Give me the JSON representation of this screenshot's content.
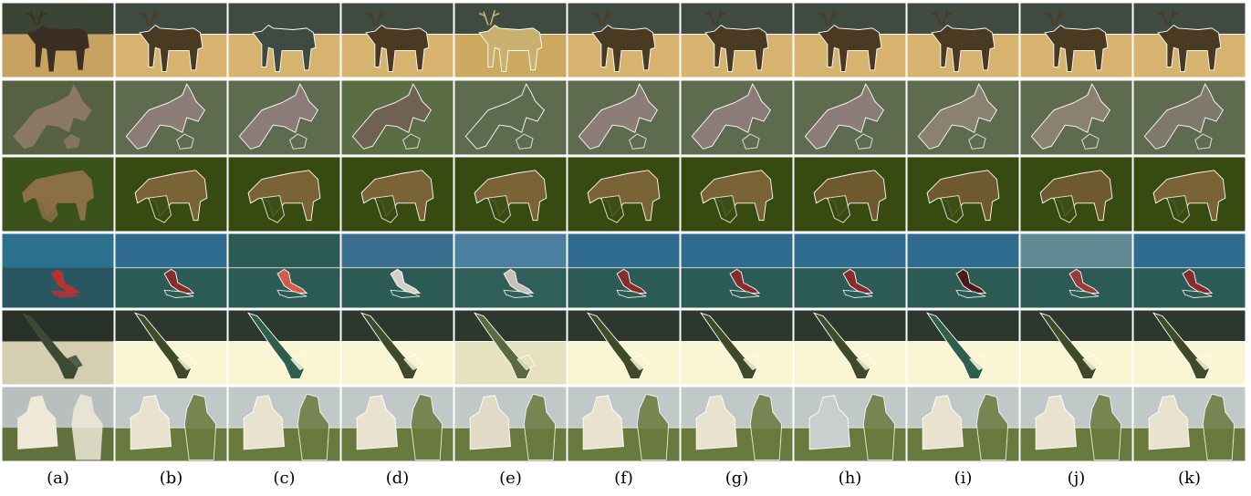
{
  "figure": {
    "column_labels": [
      "(a)",
      "(b)",
      "(c)",
      "(d)",
      "(e)",
      "(f)",
      "(g)",
      "(h)",
      "(i)",
      "(j)",
      "(k)"
    ],
    "rows": [
      {
        "subject": "elk",
        "tiles": [
          {
            "variant": "photo",
            "top": "#3f4a3a",
            "bottom": "#d9b06a",
            "fg": "#3a2f22",
            "stroke": "#ffffff"
          },
          {
            "variant": "seg",
            "top": "#3f4a40",
            "bottom": "#d6b46f",
            "fg": "#4a3a22",
            "stroke": "#ffffff"
          },
          {
            "variant": "seg",
            "top": "#3f4a40",
            "bottom": "#d6b46f",
            "fg": "#3f4a40",
            "stroke": "#ffffff"
          },
          {
            "variant": "seg",
            "top": "#3f4a40",
            "bottom": "#d6b46f",
            "fg": "#4a3a22",
            "stroke": "#ffffff"
          },
          {
            "variant": "seg",
            "top": "#3f4a40",
            "bottom": "#cda95f",
            "fg": "#c9b06f",
            "stroke": "#ffffff"
          },
          {
            "variant": "seg",
            "top": "#3f4a40",
            "bottom": "#d6b46f",
            "fg": "#4a3a22",
            "stroke": "#ffffff"
          },
          {
            "variant": "seg",
            "top": "#3f4a40",
            "bottom": "#d6b46f",
            "fg": "#4a3a22",
            "stroke": "#ffffff"
          },
          {
            "variant": "seg",
            "top": "#3f4a40",
            "bottom": "#d6b46f",
            "fg": "#4a3a22",
            "stroke": "#ffffff"
          },
          {
            "variant": "seg",
            "top": "#3f4a40",
            "bottom": "#d6b46f",
            "fg": "#4a3a22",
            "stroke": "#ffffff"
          },
          {
            "variant": "seg",
            "top": "#3f4a40",
            "bottom": "#d6b46f",
            "fg": "#4a3a22",
            "stroke": "#ffffff"
          },
          {
            "variant": "seg",
            "top": "#3f4a40",
            "bottom": "#d6b46f",
            "fg": "#4a3a22",
            "stroke": "#ffffff"
          }
        ]
      },
      {
        "subject": "kangaroo",
        "tiles": [
          {
            "variant": "photo",
            "top": "#5d6a47",
            "bottom": "#6b7a4b",
            "fg": "#8b7865",
            "stroke": "#ffffff"
          },
          {
            "variant": "seg",
            "top": "#5f6b4f",
            "bottom": "#5f6b4f",
            "fg": "#8c7c78",
            "stroke": "#ffffff"
          },
          {
            "variant": "seg",
            "top": "#5f6b4f",
            "bottom": "#5f6b4f",
            "fg": "#8c7c78",
            "stroke": "#ffffff"
          },
          {
            "variant": "seg",
            "top": "#5a6d43",
            "bottom": "#596a45",
            "fg": "#6f6252",
            "stroke": "#ffffff"
          },
          {
            "variant": "seg",
            "top": "#5f6b4f",
            "bottom": "#5f6b4f",
            "fg": "#5f6b4f",
            "stroke": "#ffffff"
          },
          {
            "variant": "seg",
            "top": "#5f6b4f",
            "bottom": "#5f6b4f",
            "fg": "#8c7c78",
            "stroke": "#ffffff"
          },
          {
            "variant": "seg",
            "top": "#5f6b4f",
            "bottom": "#5f6b4f",
            "fg": "#8c7c78",
            "stroke": "#ffffff"
          },
          {
            "variant": "seg",
            "top": "#5f6b4f",
            "bottom": "#5f6b4f",
            "fg": "#8c7c78",
            "stroke": "#ffffff"
          },
          {
            "variant": "seg",
            "top": "#5f6b4f",
            "bottom": "#5f6b4f",
            "fg": "#8a8170",
            "stroke": "#ffffff"
          },
          {
            "variant": "seg",
            "top": "#5f6b4f",
            "bottom": "#5f6b4f",
            "fg": "#8a8170",
            "stroke": "#ffffff"
          },
          {
            "variant": "seg",
            "top": "#5f6b4f",
            "bottom": "#5f6b4f",
            "fg": "#7f786d",
            "stroke": "#ffffff"
          }
        ]
      },
      {
        "subject": "sheep",
        "tiles": [
          {
            "variant": "photo",
            "top": "#405a1f",
            "bottom": "#4b6a22",
            "fg": "#8b6f45",
            "stroke": "#ffffff"
          },
          {
            "variant": "seg",
            "top": "#374a10",
            "bottom": "#374a10",
            "fg": "#7a6334",
            "stroke": "#ffffff"
          },
          {
            "variant": "seg",
            "top": "#374a10",
            "bottom": "#374a10",
            "fg": "#7a6334",
            "stroke": "#ffffff"
          },
          {
            "variant": "seg",
            "top": "#374a10",
            "bottom": "#374a10",
            "fg": "#7a6334",
            "stroke": "#ffffff"
          },
          {
            "variant": "seg",
            "top": "#374a10",
            "bottom": "#374a10",
            "fg": "#7a6334",
            "stroke": "#ffffff"
          },
          {
            "variant": "seg",
            "top": "#374a10",
            "bottom": "#374a10",
            "fg": "#7a6334",
            "stroke": "#ffffff"
          },
          {
            "variant": "seg",
            "top": "#374a10",
            "bottom": "#374a10",
            "fg": "#7a6334",
            "stroke": "#ffffff"
          },
          {
            "variant": "seg",
            "top": "#374a10",
            "bottom": "#374a10",
            "fg": "#6e5a2e",
            "stroke": "#ffffff"
          },
          {
            "variant": "seg",
            "top": "#374a10",
            "bottom": "#374a10",
            "fg": "#6e5a2e",
            "stroke": "#ffffff"
          },
          {
            "variant": "seg",
            "top": "#374a10",
            "bottom": "#374a10",
            "fg": "#6e5a2e",
            "stroke": "#ffffff"
          },
          {
            "variant": "seg",
            "top": "#374a10",
            "bottom": "#374a10",
            "fg": "#7a6334",
            "stroke": "#ffffff"
          }
        ]
      },
      {
        "subject": "surfer",
        "tiles": [
          {
            "variant": "photo",
            "top": "#2f7a9a",
            "bottom": "#2c5f6a",
            "fg": "#b83232",
            "stroke": "#ffffff"
          },
          {
            "variant": "seg",
            "top": "#2f6c8f",
            "bottom": "#2c5a54",
            "fg": "#8a2a2a",
            "stroke": "#ffffff"
          },
          {
            "variant": "seg",
            "top": "#2c5a54",
            "bottom": "#2c5a54",
            "fg": "#d65a4a",
            "stroke": "#ffffff"
          },
          {
            "variant": "seg",
            "top": "#3a6f8f",
            "bottom": "#2c5a54",
            "fg": "#d4d0c8",
            "stroke": "#ffffff"
          },
          {
            "variant": "seg",
            "top": "#4a7fa0",
            "bottom": "#305e58",
            "fg": "#c8bfb8",
            "stroke": "#ffffff"
          },
          {
            "variant": "seg",
            "top": "#2f6c8f",
            "bottom": "#2c5a54",
            "fg": "#8a2a2a",
            "stroke": "#ffffff"
          },
          {
            "variant": "seg",
            "top": "#2f6c8f",
            "bottom": "#2c5a54",
            "fg": "#8a2a2a",
            "stroke": "#ffffff"
          },
          {
            "variant": "seg",
            "top": "#2f6c8f",
            "bottom": "#2c5a54",
            "fg": "#8a2a2a",
            "stroke": "#ffffff"
          },
          {
            "variant": "seg",
            "top": "#2f6c8f",
            "bottom": "#2c5a54",
            "fg": "#4a1a1a",
            "stroke": "#ffffff"
          },
          {
            "variant": "seg",
            "top": "#5f8a94",
            "bottom": "#2c5a54",
            "fg": "#9a3a3a",
            "stroke": "#ffffff"
          },
          {
            "variant": "seg",
            "top": "#2f6c8f",
            "bottom": "#2c5a54",
            "fg": "#8a2a2a",
            "stroke": "#ffffff"
          }
        ]
      },
      {
        "subject": "windsurfer",
        "tiles": [
          {
            "variant": "photo",
            "top": "#2b362b",
            "bottom": "#e8e0c0",
            "fg": "#3c4a32",
            "stroke": "#ffffff"
          },
          {
            "variant": "seg",
            "top": "#2c372e",
            "bottom": "#faf6d4",
            "fg": "#3e4a28",
            "stroke": "#ffffff"
          },
          {
            "variant": "seg",
            "top": "#2c372e",
            "bottom": "#faf6d4",
            "fg": "#2f5f4a",
            "stroke": "#ffffff"
          },
          {
            "variant": "seg",
            "top": "#2c372e",
            "bottom": "#faf6d4",
            "fg": "#3e4a28",
            "stroke": "#ffffff"
          },
          {
            "variant": "seg",
            "top": "#2c372e",
            "bottom": "#e6e2c0",
            "fg": "#5a6a3e",
            "stroke": "#ffffff"
          },
          {
            "variant": "seg",
            "top": "#2c372e",
            "bottom": "#faf6d4",
            "fg": "#3e4a28",
            "stroke": "#ffffff"
          },
          {
            "variant": "seg",
            "top": "#2c372e",
            "bottom": "#faf6d4",
            "fg": "#3e4a28",
            "stroke": "#ffffff"
          },
          {
            "variant": "seg",
            "top": "#2c372e",
            "bottom": "#faf6d4",
            "fg": "#3e4a28",
            "stroke": "#ffffff"
          },
          {
            "variant": "seg",
            "top": "#2c372e",
            "bottom": "#faf6d4",
            "fg": "#2f5f4a",
            "stroke": "#ffffff"
          },
          {
            "variant": "seg",
            "top": "#2c372e",
            "bottom": "#faf6d4",
            "fg": "#3e4a28",
            "stroke": "#ffffff"
          },
          {
            "variant": "seg",
            "top": "#2c372e",
            "bottom": "#faf6d4",
            "fg": "#3e4a28",
            "stroke": "#ffffff"
          }
        ]
      },
      {
        "subject": "couple",
        "tiles": [
          {
            "variant": "photo",
            "top": "#c9d0d0",
            "bottom": "#6b7a44",
            "fg": "#efe9d8",
            "stroke": "#ffffff"
          },
          {
            "variant": "seg",
            "top": "#c0c8c8",
            "bottom": "#6a7a3e",
            "fg": "#e8e2cf",
            "stroke": "#ffffff"
          },
          {
            "variant": "seg",
            "top": "#c0c8c8",
            "bottom": "#6a7a3e",
            "fg": "#e8e2cf",
            "stroke": "#ffffff"
          },
          {
            "variant": "seg",
            "top": "#c0c8c8",
            "bottom": "#6a7a3e",
            "fg": "#e8e2cf",
            "stroke": "#ffffff"
          },
          {
            "variant": "seg",
            "top": "#c0c8c8",
            "bottom": "#6a7a3e",
            "fg": "#e0dac6",
            "stroke": "#ffffff"
          },
          {
            "variant": "seg",
            "top": "#c0c8c8",
            "bottom": "#6a7a3e",
            "fg": "#e8e2cf",
            "stroke": "#ffffff"
          },
          {
            "variant": "seg",
            "top": "#c0c8c8",
            "bottom": "#6a7a3e",
            "fg": "#e8e2cf",
            "stroke": "#ffffff"
          },
          {
            "variant": "seg",
            "top": "#c0c8c8",
            "bottom": "#6a7a3e",
            "fg": "#c9cfcf",
            "stroke": "#ffffff"
          },
          {
            "variant": "seg",
            "top": "#c0c8c8",
            "bottom": "#6a7a3e",
            "fg": "#e8e2cf",
            "stroke": "#ffffff"
          },
          {
            "variant": "seg",
            "top": "#c0c8c8",
            "bottom": "#6a7a3e",
            "fg": "#e8e2cf",
            "stroke": "#ffffff"
          },
          {
            "variant": "seg",
            "top": "#c0c8c8",
            "bottom": "#6a7a3e",
            "fg": "#e8e2cf",
            "stroke": "#ffffff"
          }
        ]
      }
    ]
  }
}
